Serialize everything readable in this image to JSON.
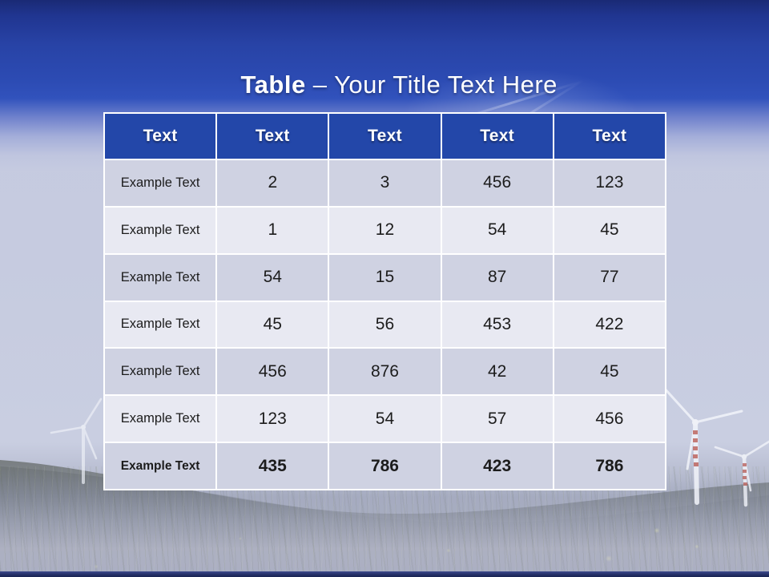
{
  "title": {
    "bold_text": "Table",
    "regular_text": " – Your Title Text Here"
  },
  "table": {
    "headers": [
      "Text",
      "Text",
      "Text",
      "Text",
      "Text"
    ],
    "rows": [
      {
        "label": "Example Text",
        "values": [
          "2",
          "3",
          "456",
          "123"
        ],
        "bold": false
      },
      {
        "label": "Example Text",
        "values": [
          "1",
          "12",
          "54",
          "45"
        ],
        "bold": false
      },
      {
        "label": "Example Text",
        "values": [
          "54",
          "15",
          "87",
          "77"
        ],
        "bold": false
      },
      {
        "label": "Example Text",
        "values": [
          "45",
          "56",
          "453",
          "422"
        ],
        "bold": false
      },
      {
        "label": "Example Text",
        "values": [
          "456",
          "876",
          "42",
          "45"
        ],
        "bold": false
      },
      {
        "label": "Example Text",
        "values": [
          "123",
          "54",
          "57",
          "456"
        ],
        "bold": false
      },
      {
        "label": "Example Text",
        "values": [
          "435",
          "786",
          "423",
          "786"
        ],
        "bold": true
      }
    ]
  },
  "colors": {
    "header_bg": "#2347A9",
    "row_dark": "#CFD2E2",
    "row_light": "#E8E9F2",
    "cell_border": "#FFFFFF",
    "cell_text": "#1C1C1C",
    "title_text": "#FFFFFF",
    "top_navy": "#1A2A75",
    "top_blue": "#2C4BB3",
    "sky": "#C6CBE0",
    "ground_haze": "#ABAFC3",
    "bottom_bar": "#232E66"
  }
}
